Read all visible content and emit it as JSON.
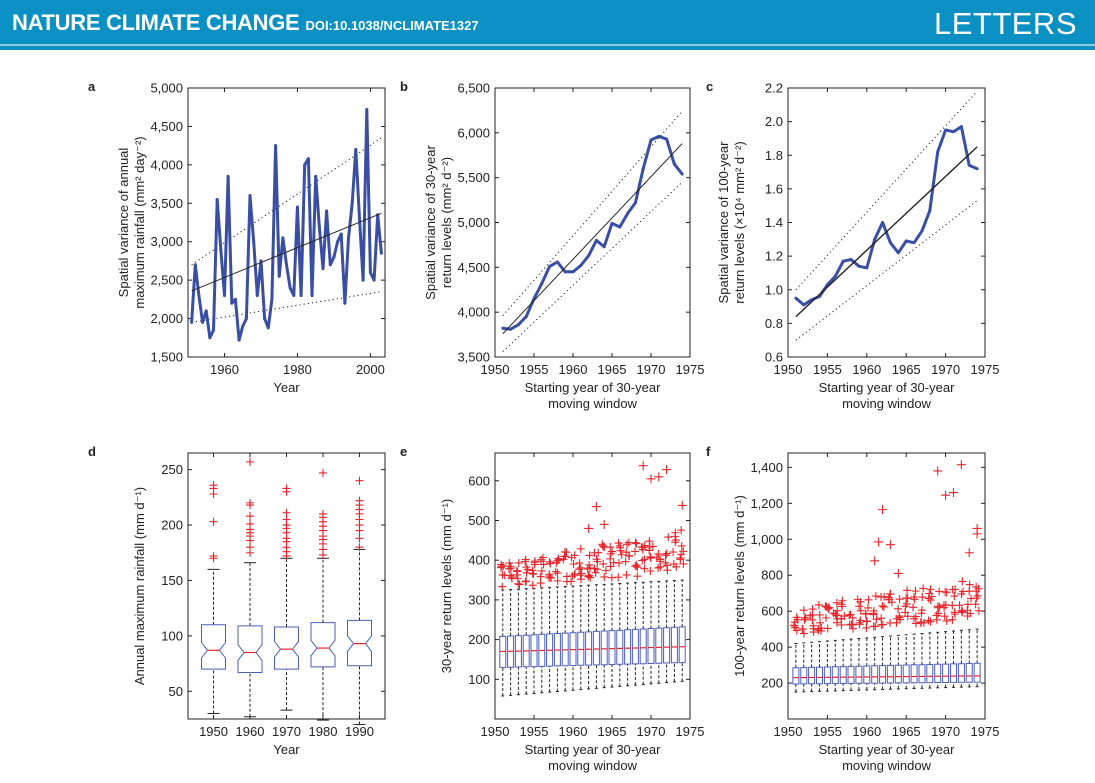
{
  "header": {
    "journal": "NATURE CLIMATE CHANGE",
    "doi": "DOI:10.1038/NCLIMATE1327",
    "section": "LETTERS"
  },
  "colors": {
    "banner": "#0b90c4",
    "series": "#3a4fa3",
    "outlier": "#e8252a",
    "box": "#4a5fc0",
    "median": "#e8252a",
    "fit": "#222222"
  },
  "chart_data": [
    {
      "panel": "a",
      "type": "line",
      "xlabel": "Year",
      "ylabel_lines": [
        "Spatial variance of annual",
        "maximum rainfall (mm² day⁻²)"
      ],
      "xlim": [
        1950,
        2004
      ],
      "ylim": [
        1500,
        5000
      ],
      "xticks": [
        1960,
        1980,
        2000
      ],
      "xticklabels": [
        "1960",
        "1980",
        "2000"
      ],
      "yticks": [
        1500,
        2000,
        2500,
        3000,
        3500,
        4000,
        4500,
        5000
      ],
      "yticklabels": [
        "1,500",
        "2,000",
        "2,500",
        "3,000",
        "3,500",
        "4,000",
        "4,500",
        "5,000"
      ],
      "x": [
        1951,
        1952,
        1953,
        1954,
        1955,
        1956,
        1957,
        1958,
        1959,
        1960,
        1961,
        1962,
        1963,
        1964,
        1965,
        1966,
        1967,
        1968,
        1969,
        1970,
        1971,
        1972,
        1973,
        1974,
        1975,
        1976,
        1977,
        1978,
        1979,
        1980,
        1981,
        1982,
        1983,
        1984,
        1985,
        1986,
        1987,
        1988,
        1989,
        1990,
        1991,
        1992,
        1993,
        1994,
        1995,
        1996,
        1997,
        1998,
        1999,
        2000,
        2001,
        2002,
        2003
      ],
      "y": [
        1950,
        2700,
        2300,
        1950,
        2100,
        1750,
        1850,
        3550,
        2900,
        2300,
        3850,
        2200,
        2250,
        1720,
        1900,
        2000,
        3600,
        3000,
        2300,
        2750,
        2000,
        1880,
        2250,
        4250,
        2550,
        3050,
        2700,
        2400,
        2300,
        3450,
        2300,
        4000,
        4080,
        2300,
        3850,
        3200,
        2650,
        3400,
        2700,
        2800,
        3000,
        3100,
        2200,
        3050,
        3500,
        4200,
        3300,
        2500,
        4720,
        2600,
        2500,
        3350,
        2850
      ],
      "fit": {
        "x": [
          1951,
          2003
        ],
        "y": [
          2360,
          3370
        ]
      },
      "upper": {
        "x": [
          1951,
          2003
        ],
        "y": [
          2700,
          4350
        ]
      },
      "lower": {
        "x": [
          1951,
          2003
        ],
        "y": [
          1950,
          2350
        ]
      }
    },
    {
      "panel": "b",
      "type": "line",
      "xlabel_lines": [
        "Starting year of 30-year",
        "moving window"
      ],
      "ylabel_lines": [
        "Spatial variance of 30-year",
        "return levels  (mm² d⁻²)"
      ],
      "xlim": [
        1950,
        1975
      ],
      "ylim": [
        3500,
        6500
      ],
      "xticks": [
        1950,
        1955,
        1960,
        1965,
        1970,
        1975
      ],
      "xticklabels": [
        "1950",
        "1955",
        "1960",
        "1965",
        "1970",
        "1975"
      ],
      "yticks": [
        3500,
        4000,
        4500,
        5000,
        5500,
        6000,
        6500
      ],
      "yticklabels": [
        "3,500",
        "4,000",
        "4,500",
        "5,000",
        "5,500",
        "6,000",
        "6,500"
      ],
      "x": [
        1951,
        1952,
        1953,
        1954,
        1955,
        1956,
        1957,
        1958,
        1959,
        1960,
        1961,
        1962,
        1963,
        1964,
        1965,
        1966,
        1967,
        1968,
        1969,
        1970,
        1971,
        1972,
        1973,
        1974
      ],
      "y": [
        3820,
        3810,
        3860,
        3950,
        4150,
        4320,
        4510,
        4560,
        4450,
        4450,
        4520,
        4630,
        4800,
        4730,
        4990,
        4950,
        5100,
        5220,
        5600,
        5920,
        5960,
        5930,
        5650,
        5540
      ],
      "fit": {
        "x": [
          1951,
          1974
        ],
        "y": [
          3760,
          5880
        ]
      },
      "upper": {
        "x": [
          1951,
          1974
        ],
        "y": [
          3960,
          6240
        ]
      },
      "lower": {
        "x": [
          1951,
          1974
        ],
        "y": [
          3560,
          5450
        ]
      }
    },
    {
      "panel": "c",
      "type": "line",
      "xlabel_lines": [
        "Starting year of 30-year",
        "moving window"
      ],
      "ylabel_lines": [
        "Spatial variance of 100-year",
        "return levels  (×10⁴ mm² d⁻²)"
      ],
      "xlim": [
        1950,
        1975
      ],
      "ylim": [
        0.6,
        2.2
      ],
      "xticks": [
        1950,
        1955,
        1960,
        1965,
        1970,
        1975
      ],
      "xticklabels": [
        "1950",
        "1955",
        "1960",
        "1965",
        "1970",
        "1975"
      ],
      "yticks": [
        0.6,
        0.8,
        1.0,
        1.2,
        1.4,
        1.6,
        1.8,
        2.0,
        2.2
      ],
      "yticklabels": [
        "0.6",
        "0.8",
        "1.0",
        "1.2",
        "1.4",
        "1.6",
        "1.8",
        "2.0",
        "2.2"
      ],
      "x": [
        1951,
        1952,
        1953,
        1954,
        1955,
        1956,
        1957,
        1958,
        1959,
        1960,
        1961,
        1962,
        1963,
        1964,
        1965,
        1966,
        1967,
        1968,
        1969,
        1970,
        1971,
        1972,
        1973,
        1974
      ],
      "y": [
        0.95,
        0.91,
        0.94,
        0.96,
        1.03,
        1.08,
        1.17,
        1.18,
        1.14,
        1.13,
        1.3,
        1.4,
        1.28,
        1.22,
        1.29,
        1.28,
        1.35,
        1.47,
        1.82,
        1.95,
        1.94,
        1.97,
        1.74,
        1.72
      ],
      "fit": {
        "x": [
          1951,
          1974
        ],
        "y": [
          0.84,
          1.85
        ]
      },
      "upper": {
        "x": [
          1951,
          1974
        ],
        "y": [
          1.0,
          2.18
        ]
      },
      "lower": {
        "x": [
          1951,
          1974
        ],
        "y": [
          0.7,
          1.53
        ]
      }
    },
    {
      "panel": "d",
      "type": "box",
      "xlabel": "Year",
      "ylabel": "Annual maximum rainfall (mm d⁻¹)",
      "xlim": [
        1943,
        1997
      ],
      "ylim": [
        25,
        265
      ],
      "xticks": [
        1950,
        1960,
        1970,
        1980,
        1990
      ],
      "xticklabels": [
        "1950",
        "1960",
        "1970",
        "1980",
        "1990"
      ],
      "yticks": [
        50,
        100,
        150,
        200,
        250
      ],
      "yticklabels": [
        "50",
        "100",
        "150",
        "200",
        "250"
      ],
      "boxes": [
        {
          "x": 1950,
          "whislo": 30,
          "q1": 70,
          "med": 87,
          "q3": 110,
          "whishi": 160,
          "notch": [
            80,
            94
          ],
          "fliers": [
            170,
            172,
            203,
            228,
            233,
            236
          ]
        },
        {
          "x": 1960,
          "whislo": 27,
          "q1": 67,
          "med": 85,
          "q3": 109,
          "whishi": 166,
          "notch": [
            78,
            92
          ],
          "fliers": [
            175,
            180,
            186,
            190,
            193,
            196,
            201,
            208,
            218,
            220,
            257
          ]
        },
        {
          "x": 1970,
          "whislo": 33,
          "q1": 70,
          "med": 88,
          "q3": 108,
          "whishi": 170,
          "notch": [
            81,
            95
          ],
          "fliers": [
            172,
            176,
            180,
            185,
            188,
            193,
            197,
            200,
            205,
            211,
            230,
            233
          ]
        },
        {
          "x": 1980,
          "whislo": 24,
          "q1": 72,
          "med": 89,
          "q3": 112,
          "whishi": 170,
          "notch": [
            82,
            96
          ],
          "fliers": [
            173,
            178,
            183,
            187,
            190,
            195,
            199,
            203,
            207,
            210,
            247
          ]
        },
        {
          "x": 1990,
          "whislo": 20,
          "q1": 73,
          "med": 93,
          "q3": 114,
          "whishi": 178,
          "notch": [
            86,
            100
          ],
          "fliers": [
            180,
            188,
            195,
            200,
            205,
            210,
            214,
            218,
            222,
            240
          ]
        }
      ]
    },
    {
      "panel": "e",
      "type": "box",
      "xlabel_lines": [
        "Starting year of 30-year",
        "moving window"
      ],
      "ylabel": "30-year return levels (mm d⁻¹)",
      "xlim": [
        1950,
        1975
      ],
      "ylim": [
        0,
        670
      ],
      "xticks": [
        1950,
        1955,
        1960,
        1965,
        1970,
        1975
      ],
      "xticklabels": [
        "1950",
        "1955",
        "1960",
        "1965",
        "1970",
        "1975"
      ],
      "yticks": [
        100,
        200,
        300,
        400,
        500,
        600
      ],
      "yticklabels": [
        "100",
        "200",
        "300",
        "400",
        "500",
        "600"
      ],
      "series_x": [
        1951,
        1974
      ],
      "whislo": [
        58,
        95
      ],
      "q1": [
        130,
        142
      ],
      "med": [
        170,
        182
      ],
      "q3": [
        208,
        232
      ],
      "whishi": [
        325,
        350
      ],
      "flier_band": [
        [
          330,
          390
        ],
        [
          370,
          480
        ]
      ],
      "extreme_fliers": [
        {
          "x": 1962,
          "y": 480
        },
        {
          "x": 1963,
          "y": 535
        },
        {
          "x": 1964,
          "y": 490
        },
        {
          "x": 1969,
          "y": 638
        },
        {
          "x": 1970,
          "y": 605
        },
        {
          "x": 1971,
          "y": 610
        },
        {
          "x": 1972,
          "y": 628
        },
        {
          "x": 1974,
          "y": 538
        }
      ]
    },
    {
      "panel": "f",
      "type": "box",
      "xlabel_lines": [
        "Starting year of 30-year",
        "moving window"
      ],
      "ylabel": "100-year return levels (mm d⁻¹)",
      "xlim": [
        1950,
        1975
      ],
      "ylim": [
        0,
        1480
      ],
      "xticks": [
        1950,
        1955,
        1960,
        1965,
        1970,
        1975
      ],
      "xticklabels": [
        "1950",
        "1955",
        "1960",
        "1965",
        "1970",
        "1975"
      ],
      "yticks": [
        200,
        400,
        600,
        800,
        1000,
        1200,
        1400
      ],
      "yticklabels": [
        "200",
        "400",
        "600",
        "800",
        "1,000",
        "1,200",
        "1,400"
      ],
      "series_x": [
        1951,
        1974
      ],
      "whislo": [
        150,
        180
      ],
      "q1": [
        195,
        205
      ],
      "med": [
        230,
        240
      ],
      "q3": [
        285,
        310
      ],
      "whishi": [
        420,
        500
      ],
      "flier_band": [
        [
          470,
          620
        ],
        [
          560,
          780
        ]
      ],
      "extreme_fliers": [
        {
          "x": 1961,
          "y": 880
        },
        {
          "x": 1961.5,
          "y": 985
        },
        {
          "x": 1962,
          "y": 1165
        },
        {
          "x": 1963,
          "y": 970
        },
        {
          "x": 1964,
          "y": 810
        },
        {
          "x": 1969,
          "y": 1380
        },
        {
          "x": 1970,
          "y": 1245
        },
        {
          "x": 1971,
          "y": 1260
        },
        {
          "x": 1972,
          "y": 1415
        },
        {
          "x": 1973,
          "y": 925
        },
        {
          "x": 1974,
          "y": 1060
        },
        {
          "x": 1974,
          "y": 1030
        }
      ]
    }
  ]
}
